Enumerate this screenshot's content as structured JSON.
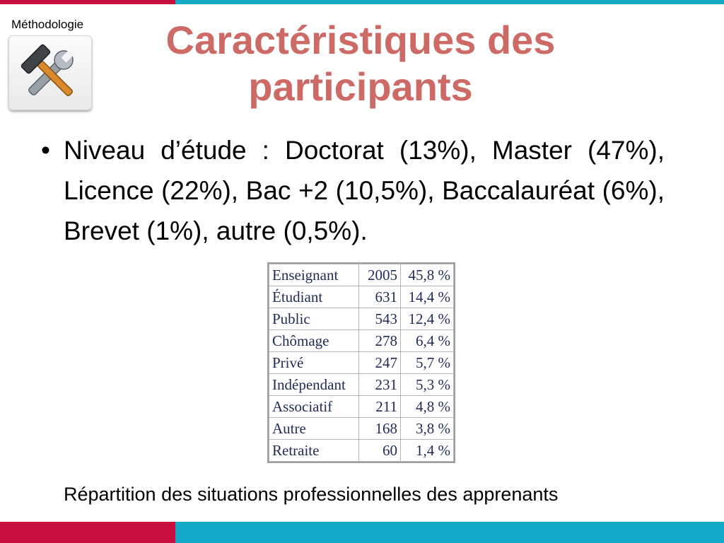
{
  "header": {
    "section_label": "Méthodologie",
    "section_icon": "hammer-wrench-icon",
    "title": "Caractéristiques des participants",
    "colors": {
      "red_accent": "#c8103e",
      "teal_accent": "#13aac9",
      "title": "#cd6a66"
    }
  },
  "main": {
    "bullet_text": "Niveau d’étude : Doctorat (13%), Master (47%), Licence (22%), Bac +2 (10,5%), Baccalauréat (6%), Brevet (1%), autre (0,5%).",
    "table": {
      "rows": [
        [
          "Enseignant",
          "2005",
          "45,8 %"
        ],
        [
          "Étudiant",
          "631",
          "14,4 %"
        ],
        [
          "Public",
          "543",
          "12,4 %"
        ],
        [
          "Chômage",
          "278",
          "6,4 %"
        ],
        [
          "Privé",
          "247",
          "5,7 %"
        ],
        [
          "Indépendant",
          "231",
          "5,3 %"
        ],
        [
          "Associatif",
          "211",
          "4,8 %"
        ],
        [
          "Autre",
          "168",
          "3,8 %"
        ],
        [
          "Retraite",
          "60",
          "1,4 %"
        ]
      ]
    },
    "caption": "Répartition des situations professionnelles des apprenants"
  }
}
